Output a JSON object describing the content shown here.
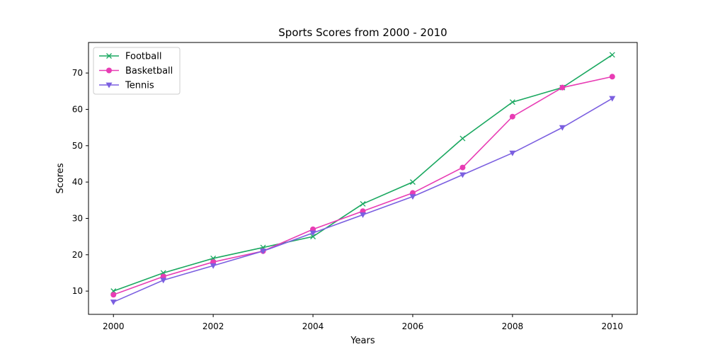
{
  "chart_data": {
    "type": "line",
    "title": "Sports Scores from 2000 - 2010",
    "xlabel": "Years",
    "ylabel": "Scores",
    "x": [
      2000,
      2001,
      2002,
      2003,
      2004,
      2005,
      2006,
      2007,
      2008,
      2009,
      2010
    ],
    "xlim": [
      1999.5,
      2010.5
    ],
    "ylim": [
      3.6,
      78.4
    ],
    "xticks": [
      2000,
      2002,
      2004,
      2006,
      2008,
      2010
    ],
    "yticks": [
      10,
      20,
      30,
      40,
      50,
      60,
      70
    ],
    "grid": false,
    "legend_position": "top-left",
    "series": [
      {
        "name": "Football",
        "color": "#1aa860",
        "marker": "x",
        "values": [
          10,
          15,
          19,
          22,
          25,
          34,
          40,
          52,
          62,
          66,
          75
        ]
      },
      {
        "name": "Basketball",
        "color": "#e83cb4",
        "marker": "circle",
        "values": [
          9,
          14,
          18,
          21,
          27,
          32,
          37,
          44,
          58,
          66,
          69
        ]
      },
      {
        "name": "Tennis",
        "color": "#7b5fe0",
        "marker": "triangle-down",
        "values": [
          7,
          13,
          17,
          21,
          26,
          31,
          36,
          42,
          48,
          55,
          63
        ]
      }
    ]
  }
}
